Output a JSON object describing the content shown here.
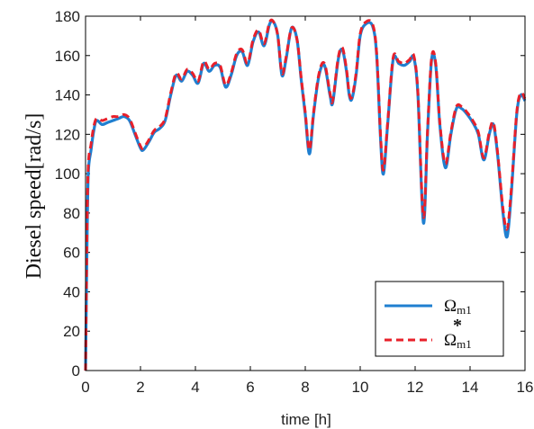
{
  "chart_data": {
    "type": "line",
    "xlabel": "time [h]",
    "ylabel": "Diesel speed[rad/s]",
    "xlim": [
      0,
      16
    ],
    "ylim": [
      0,
      180
    ],
    "xticks": [
      0,
      2,
      4,
      6,
      8,
      10,
      12,
      14,
      16
    ],
    "yticks": [
      0,
      20,
      40,
      60,
      80,
      100,
      120,
      140,
      160,
      180
    ],
    "grid": false,
    "legend_position": "bottom-right",
    "series": [
      {
        "name": "Ωm1",
        "color": "#1f7fd0",
        "style": "solid",
        "points": [
          [
            0,
            0
          ],
          [
            0.05,
            60
          ],
          [
            0.1,
            100
          ],
          [
            0.2,
            112
          ],
          [
            0.3,
            122
          ],
          [
            0.4,
            127
          ],
          [
            0.6,
            125
          ],
          [
            0.8,
            126
          ],
          [
            1.0,
            127
          ],
          [
            1.2,
            128
          ],
          [
            1.4,
            129
          ],
          [
            1.6,
            127
          ],
          [
            1.8,
            120
          ],
          [
            2.0,
            113
          ],
          [
            2.1,
            112
          ],
          [
            2.3,
            116
          ],
          [
            2.5,
            121
          ],
          [
            2.7,
            123
          ],
          [
            2.9,
            127
          ],
          [
            3.1,
            140
          ],
          [
            3.3,
            150
          ],
          [
            3.5,
            147
          ],
          [
            3.7,
            152
          ],
          [
            3.9,
            150
          ],
          [
            4.1,
            146
          ],
          [
            4.3,
            156
          ],
          [
            4.5,
            152
          ],
          [
            4.7,
            155
          ],
          [
            4.9,
            154
          ],
          [
            5.1,
            144
          ],
          [
            5.3,
            150
          ],
          [
            5.5,
            160
          ],
          [
            5.7,
            162
          ],
          [
            5.9,
            155
          ],
          [
            6.1,
            167
          ],
          [
            6.3,
            172
          ],
          [
            6.5,
            165
          ],
          [
            6.7,
            176
          ],
          [
            6.85,
            177
          ],
          [
            7.0,
            170
          ],
          [
            7.15,
            150
          ],
          [
            7.3,
            158
          ],
          [
            7.5,
            174
          ],
          [
            7.7,
            168
          ],
          [
            7.85,
            148
          ],
          [
            8.0,
            130
          ],
          [
            8.15,
            110
          ],
          [
            8.3,
            130
          ],
          [
            8.5,
            150
          ],
          [
            8.7,
            155
          ],
          [
            8.9,
            140
          ],
          [
            9.0,
            136
          ],
          [
            9.2,
            158
          ],
          [
            9.35,
            163
          ],
          [
            9.5,
            152
          ],
          [
            9.6,
            140
          ],
          [
            9.7,
            138
          ],
          [
            9.85,
            150
          ],
          [
            10.0,
            170
          ],
          [
            10.2,
            176
          ],
          [
            10.45,
            175
          ],
          [
            10.6,
            160
          ],
          [
            10.75,
            115
          ],
          [
            10.85,
            100
          ],
          [
            11.0,
            125
          ],
          [
            11.2,
            158
          ],
          [
            11.4,
            156
          ],
          [
            11.6,
            155
          ],
          [
            11.8,
            157
          ],
          [
            11.95,
            159
          ],
          [
            12.1,
            140
          ],
          [
            12.3,
            75
          ],
          [
            12.45,
            120
          ],
          [
            12.6,
            158
          ],
          [
            12.75,
            155
          ],
          [
            12.9,
            125
          ],
          [
            13.1,
            103
          ],
          [
            13.3,
            120
          ],
          [
            13.5,
            133
          ],
          [
            13.7,
            133
          ],
          [
            13.9,
            130
          ],
          [
            14.1,
            126
          ],
          [
            14.3,
            120
          ],
          [
            14.5,
            107
          ],
          [
            14.7,
            120
          ],
          [
            14.85,
            125
          ],
          [
            15.0,
            110
          ],
          [
            15.2,
            80
          ],
          [
            15.35,
            68
          ],
          [
            15.5,
            90
          ],
          [
            15.7,
            130
          ],
          [
            15.85,
            140
          ],
          [
            16.0,
            137
          ]
        ]
      },
      {
        "name": "Ωm1*",
        "color": "#e8202a",
        "style": "dashed",
        "points": [
          [
            0,
            0
          ],
          [
            0.05,
            65
          ],
          [
            0.1,
            104
          ],
          [
            0.2,
            115
          ],
          [
            0.3,
            124
          ],
          [
            0.4,
            128
          ],
          [
            0.6,
            127
          ],
          [
            0.8,
            128
          ],
          [
            1.0,
            129
          ],
          [
            1.2,
            129
          ],
          [
            1.4,
            130
          ],
          [
            1.6,
            128
          ],
          [
            1.8,
            121
          ],
          [
            2.0,
            114
          ],
          [
            2.1,
            113
          ],
          [
            2.3,
            117
          ],
          [
            2.5,
            122
          ],
          [
            2.7,
            124
          ],
          [
            2.9,
            128
          ],
          [
            3.1,
            141
          ],
          [
            3.3,
            151
          ],
          [
            3.5,
            148
          ],
          [
            3.7,
            153
          ],
          [
            3.9,
            151
          ],
          [
            4.1,
            147
          ],
          [
            4.3,
            157
          ],
          [
            4.5,
            153
          ],
          [
            4.7,
            156
          ],
          [
            4.9,
            155
          ],
          [
            5.1,
            145
          ],
          [
            5.3,
            151
          ],
          [
            5.5,
            161
          ],
          [
            5.7,
            163
          ],
          [
            5.9,
            156
          ],
          [
            6.1,
            168
          ],
          [
            6.3,
            173
          ],
          [
            6.5,
            166
          ],
          [
            6.7,
            177
          ],
          [
            6.85,
            177
          ],
          [
            7.0,
            170
          ],
          [
            7.15,
            151
          ],
          [
            7.3,
            159
          ],
          [
            7.5,
            174
          ],
          [
            7.7,
            168
          ],
          [
            7.85,
            149
          ],
          [
            8.0,
            131
          ],
          [
            8.15,
            112
          ],
          [
            8.3,
            131
          ],
          [
            8.5,
            151
          ],
          [
            8.7,
            156
          ],
          [
            8.9,
            141
          ],
          [
            9.0,
            137
          ],
          [
            9.2,
            159
          ],
          [
            9.35,
            164
          ],
          [
            9.5,
            153
          ],
          [
            9.6,
            141
          ],
          [
            9.7,
            139
          ],
          [
            9.85,
            151
          ],
          [
            10.0,
            171
          ],
          [
            10.2,
            177
          ],
          [
            10.45,
            176
          ],
          [
            10.6,
            161
          ],
          [
            10.75,
            117
          ],
          [
            10.85,
            102
          ],
          [
            11.0,
            126
          ],
          [
            11.2,
            159
          ],
          [
            11.4,
            157
          ],
          [
            11.6,
            156
          ],
          [
            11.8,
            158
          ],
          [
            11.95,
            160
          ],
          [
            12.1,
            141
          ],
          [
            12.3,
            78
          ],
          [
            12.45,
            121
          ],
          [
            12.6,
            159
          ],
          [
            12.75,
            156
          ],
          [
            12.9,
            126
          ],
          [
            13.1,
            105
          ],
          [
            13.3,
            121
          ],
          [
            13.5,
            134
          ],
          [
            13.7,
            134
          ],
          [
            13.9,
            131
          ],
          [
            14.1,
            127
          ],
          [
            14.3,
            121
          ],
          [
            14.5,
            108
          ],
          [
            14.7,
            121
          ],
          [
            14.85,
            126
          ],
          [
            15.0,
            111
          ],
          [
            15.2,
            82
          ],
          [
            15.35,
            72
          ],
          [
            15.5,
            92
          ],
          [
            15.7,
            131
          ],
          [
            15.85,
            141
          ],
          [
            16.0,
            138
          ]
        ]
      }
    ]
  },
  "legend": {
    "entry1": {
      "base": "Ω",
      "sub": "m1",
      "star": ""
    },
    "entry2": {
      "base": "Ω",
      "sub": "m1",
      "star": "*"
    }
  }
}
